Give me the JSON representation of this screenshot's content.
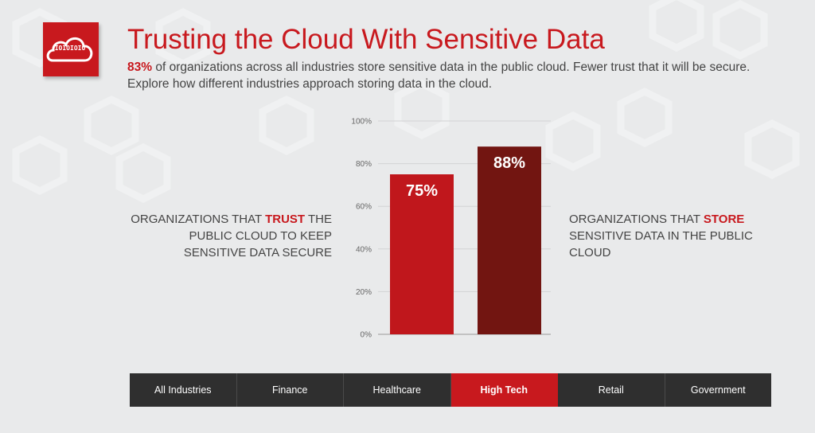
{
  "header": {
    "logo_text": "IOIOIOIO",
    "title": "Trusting the Cloud With Sensitive Data",
    "subtitle_highlight": "83%",
    "subtitle_rest": " of organizations across all industries store sensitive data in the public cloud. Fewer trust that it will be secure. Explore how different industries approach storing data in the cloud."
  },
  "left_label": {
    "before": "Organizations that ",
    "highlight": "Trust",
    "after": " the public cloud to keep sensitive data secure"
  },
  "right_label": {
    "before": "Organizations that ",
    "highlight": "Store",
    "after": " sensitive data in the public cloud"
  },
  "tabs": [
    {
      "label": "All Industries",
      "active": false
    },
    {
      "label": "Finance",
      "active": false
    },
    {
      "label": "Healthcare",
      "active": false
    },
    {
      "label": "High Tech",
      "active": true
    },
    {
      "label": "Retail",
      "active": false
    },
    {
      "label": "Government",
      "active": false
    }
  ],
  "colors": {
    "accent": "#c8191e",
    "trust_bar": "#c0171c",
    "store_bar": "#721511",
    "tab_bg": "#2f2f2f"
  },
  "chart_data": {
    "type": "bar",
    "categories": [
      "Trust",
      "Store"
    ],
    "values": [
      75,
      88
    ],
    "data_labels": [
      "75%",
      "88%"
    ],
    "ylim": [
      0,
      100
    ],
    "yticks": [
      0,
      20,
      40,
      60,
      80,
      100
    ],
    "ytick_labels": [
      "0%",
      "20%",
      "40%",
      "60%",
      "80%",
      "100%"
    ],
    "title": "",
    "xlabel": "",
    "ylabel": "",
    "grid": true
  }
}
